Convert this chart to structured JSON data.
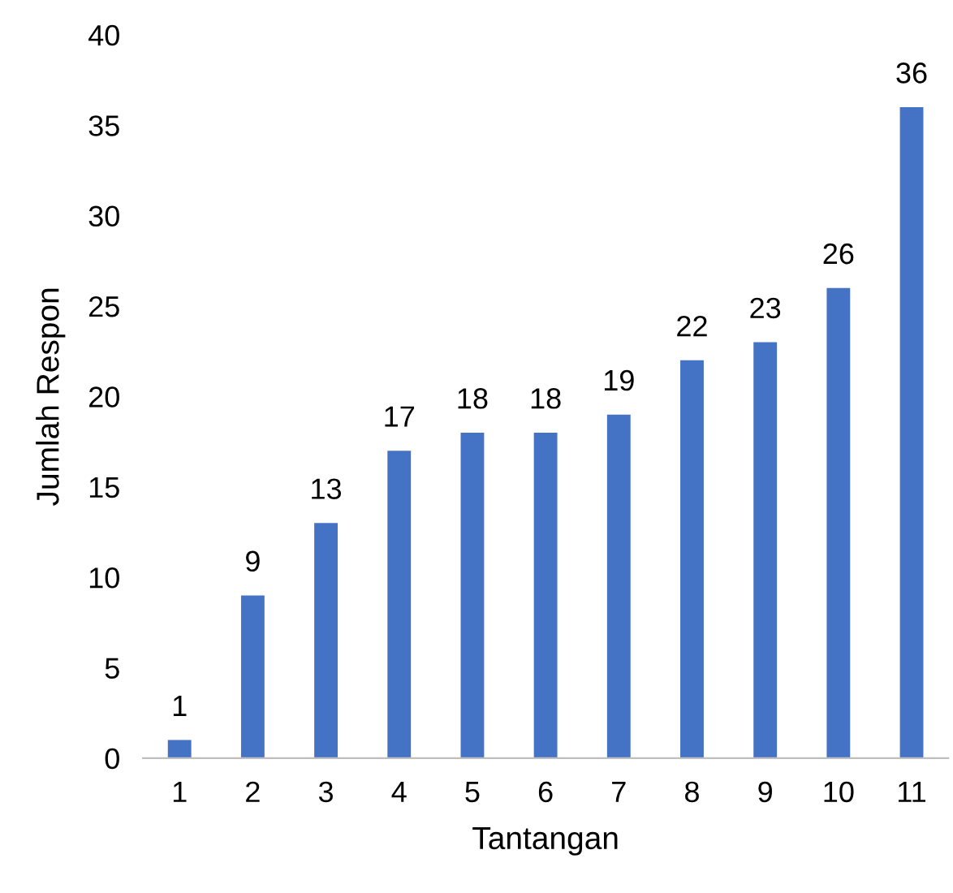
{
  "chart_data": {
    "type": "bar",
    "xlabel": "Tantangan",
    "ylabel": "Jumlah Respon",
    "categories": [
      "1",
      "2",
      "3",
      "4",
      "5",
      "6",
      "7",
      "8",
      "9",
      "10",
      "11"
    ],
    "values": [
      1,
      9,
      13,
      17,
      18,
      18,
      19,
      22,
      23,
      26,
      36
    ],
    "color": "#4472c4",
    "ylim": [
      0,
      40
    ],
    "yticks": [
      0,
      5,
      10,
      15,
      20,
      25,
      30,
      35,
      40
    ],
    "grid": false,
    "data_labels": true
  }
}
